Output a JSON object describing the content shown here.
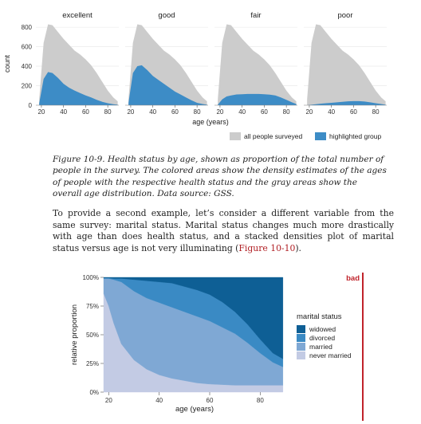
{
  "figure_top": {
    "chart_data": {
      "type": "area",
      "panels": [
        "excellent",
        "good",
        "fair",
        "poor"
      ],
      "x_ticks": [
        20,
        40,
        60,
        80
      ],
      "y_ticks": [
        0,
        200,
        400,
        600,
        800
      ],
      "ylabel": "count",
      "xlabel": "age (years)",
      "ylim": [
        0,
        850
      ],
      "xlim": [
        15,
        90
      ],
      "series": [
        {
          "name": "all people surveyed",
          "x": [
            18,
            22,
            26,
            30,
            35,
            40,
            45,
            50,
            55,
            60,
            65,
            70,
            75,
            80,
            85,
            89
          ],
          "values": [
            60,
            640,
            830,
            820,
            750,
            680,
            620,
            560,
            520,
            470,
            410,
            330,
            240,
            150,
            80,
            40
          ]
        },
        {
          "name": "highlighted group",
          "panel_values": {
            "excellent": [
              20,
              270,
              340,
              330,
              280,
              220,
              180,
              150,
              125,
              100,
              80,
              55,
              35,
              20,
              10,
              5
            ],
            "good": [
              25,
              330,
              400,
              410,
              360,
              300,
              260,
              220,
              180,
              140,
              110,
              80,
              50,
              25,
              12,
              5
            ],
            "fair": [
              5,
              60,
              90,
              100,
              110,
              112,
              115,
              115,
              115,
              112,
              108,
              100,
              80,
              55,
              30,
              12
            ],
            "poor": [
              0,
              5,
              10,
              15,
              20,
              25,
              30,
              35,
              40,
              42,
              42,
              38,
              30,
              20,
              12,
              5
            ]
          }
        }
      ],
      "legend": [
        "all people surveyed",
        "highlighted group"
      ],
      "colors": {
        "all": "#cccccc",
        "highlight": "#3d8cc6"
      }
    }
  },
  "caption": "Figure 10-9. Health status by age, shown as proportion of the total number of people in the survey. The colored areas show the density estimates of the ages of people with the respective health status and the gray areas show the overall age distribution. Data source: GSS.",
  "body_before_link": "To provide a second example, let’s consider a different variable from the same survey: marital status. Marital status changes much more drastically with age than does health status, and a stacked densities plot of marital status versus age is not very illuminating (",
  "body_link": "Figure 10-10",
  "body_after_link": ").",
  "figure_bottom": {
    "bad_label": "bad",
    "chart_data": {
      "type": "area",
      "xlabel": "age (years)",
      "ylabel": "relative proportion",
      "x_ticks": [
        20,
        40,
        60,
        80
      ],
      "y_ticks": [
        "0%",
        "25%",
        "50%",
        "75%",
        "100%"
      ],
      "xlim": [
        18,
        90
      ],
      "ylim": [
        0,
        1
      ],
      "legend_title": "marital status",
      "x": [
        18,
        20,
        22,
        25,
        30,
        35,
        40,
        45,
        50,
        55,
        60,
        65,
        70,
        75,
        80,
        85,
        89
      ],
      "series": [
        {
          "name": "never married",
          "values": [
            0.86,
            0.75,
            0.6,
            0.42,
            0.28,
            0.2,
            0.15,
            0.12,
            0.1,
            0.08,
            0.07,
            0.065,
            0.06,
            0.06,
            0.06,
            0.06,
            0.06
          ]
        },
        {
          "name": "married",
          "values": [
            0.13,
            0.24,
            0.38,
            0.54,
            0.6,
            0.62,
            0.63,
            0.62,
            0.6,
            0.58,
            0.55,
            0.5,
            0.45,
            0.37,
            0.28,
            0.2,
            0.16
          ]
        },
        {
          "name": "divorced",
          "values": [
            0.005,
            0.005,
            0.01,
            0.03,
            0.1,
            0.15,
            0.18,
            0.21,
            0.22,
            0.23,
            0.23,
            0.22,
            0.19,
            0.16,
            0.12,
            0.08,
            0.07
          ]
        },
        {
          "name": "widowed",
          "values": [
            0.005,
            0.005,
            0.01,
            0.01,
            0.02,
            0.03,
            0.04,
            0.05,
            0.08,
            0.11,
            0.15,
            0.215,
            0.3,
            0.41,
            0.54,
            0.66,
            0.71
          ]
        }
      ],
      "colors": {
        "never married": "#c3cbe4",
        "married": "#7fa8d4",
        "divorced": "#3a8ac4",
        "widowed": "#0e5f95"
      }
    }
  }
}
